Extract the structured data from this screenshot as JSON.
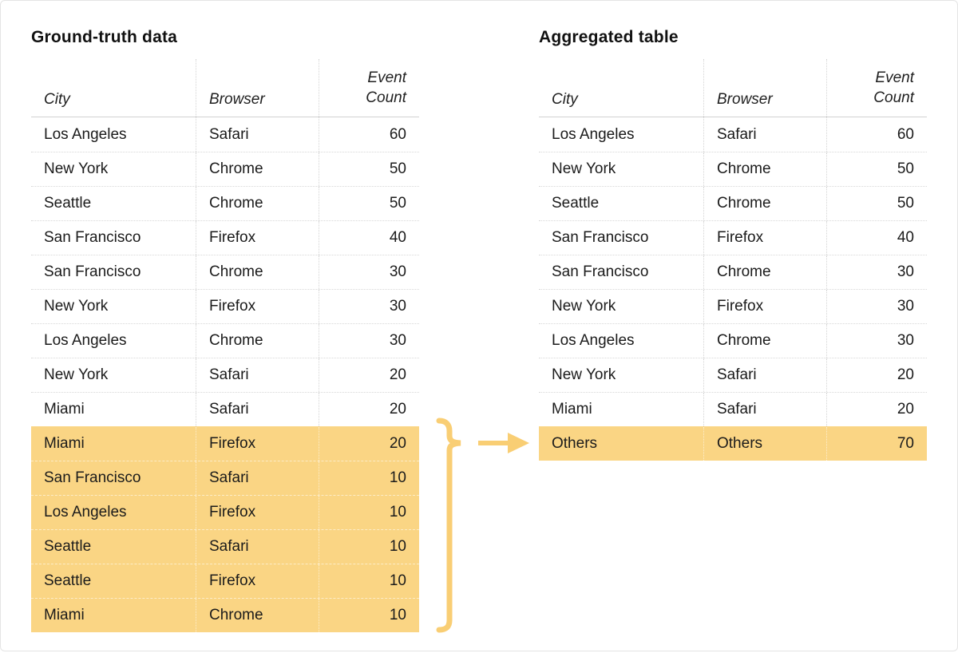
{
  "colors": {
    "highlight": "#FAD584",
    "accent": "#F9CE74",
    "text": "#1B1B1B",
    "grid_line": "#D8D8D8",
    "canvas_border": "#E4E4E4"
  },
  "tables": {
    "ground_truth": {
      "title": "Ground-truth data",
      "columns": [
        "City",
        "Browser",
        "Event Count"
      ],
      "rows": [
        {
          "city": "Los Angeles",
          "browser": "Safari",
          "count": "60",
          "highlighted": false
        },
        {
          "city": "New York",
          "browser": "Chrome",
          "count": "50",
          "highlighted": false
        },
        {
          "city": "Seattle",
          "browser": "Chrome",
          "count": "50",
          "highlighted": false
        },
        {
          "city": "San Francisco",
          "browser": "Firefox",
          "count": "40",
          "highlighted": false
        },
        {
          "city": "San Francisco",
          "browser": "Chrome",
          "count": "30",
          "highlighted": false
        },
        {
          "city": "New York",
          "browser": "Firefox",
          "count": "30",
          "highlighted": false
        },
        {
          "city": "Los Angeles",
          "browser": "Chrome",
          "count": "30",
          "highlighted": false
        },
        {
          "city": "New York",
          "browser": "Safari",
          "count": "20",
          "highlighted": false
        },
        {
          "city": "Miami",
          "browser": "Safari",
          "count": "20",
          "highlighted": false
        },
        {
          "city": "Miami",
          "browser": "Firefox",
          "count": "20",
          "highlighted": true
        },
        {
          "city": "San Francisco",
          "browser": "Safari",
          "count": "10",
          "highlighted": true
        },
        {
          "city": "Los Angeles",
          "browser": "Firefox",
          "count": "10",
          "highlighted": true
        },
        {
          "city": "Seattle",
          "browser": "Safari",
          "count": "10",
          "highlighted": true
        },
        {
          "city": "Seattle",
          "browser": "Firefox",
          "count": "10",
          "highlighted": true
        },
        {
          "city": "Miami",
          "browser": "Chrome",
          "count": "10",
          "highlighted": true
        }
      ]
    },
    "aggregated": {
      "title": "Aggregated table",
      "columns": [
        "City",
        "Browser",
        "Event Count"
      ],
      "rows": [
        {
          "city": "Los Angeles",
          "browser": "Safari",
          "count": "60",
          "highlighted": false
        },
        {
          "city": "New York",
          "browser": "Chrome",
          "count": "50",
          "highlighted": false
        },
        {
          "city": "Seattle",
          "browser": "Chrome",
          "count": "50",
          "highlighted": false
        },
        {
          "city": "San Francisco",
          "browser": "Firefox",
          "count": "40",
          "highlighted": false
        },
        {
          "city": "San Francisco",
          "browser": "Chrome",
          "count": "30",
          "highlighted": false
        },
        {
          "city": "New York",
          "browser": "Firefox",
          "count": "30",
          "highlighted": false
        },
        {
          "city": "Los Angeles",
          "browser": "Chrome",
          "count": "30",
          "highlighted": false
        },
        {
          "city": "New York",
          "browser": "Safari",
          "count": "20",
          "highlighted": false
        },
        {
          "city": "Miami",
          "browser": "Safari",
          "count": "20",
          "highlighted": false
        },
        {
          "city": "Others",
          "browser": "Others",
          "count": "70",
          "highlighted": true
        }
      ]
    }
  },
  "annotation": {
    "brace_icon": "curly-brace-icon",
    "arrow_icon": "right-arrow-icon"
  }
}
